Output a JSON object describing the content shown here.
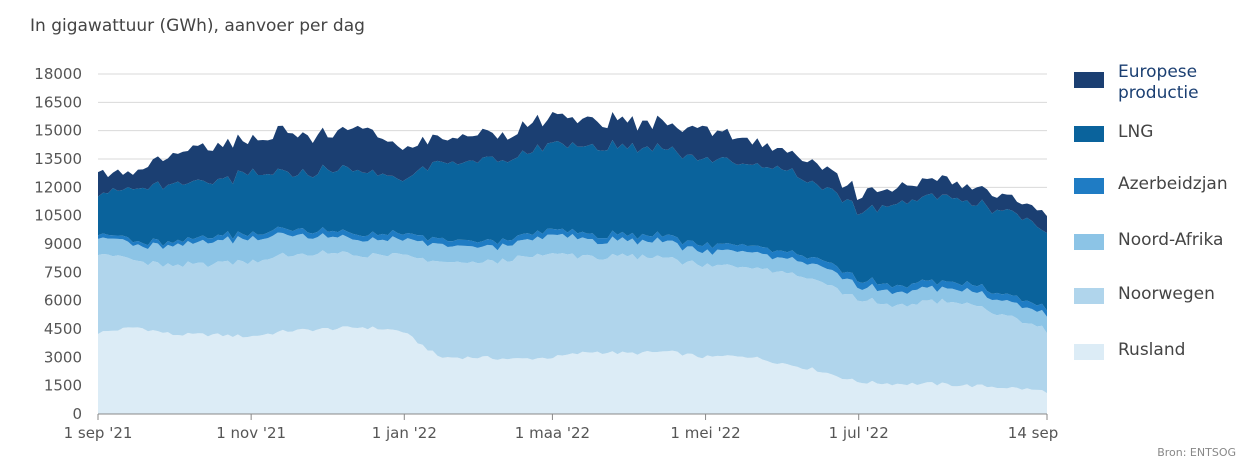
{
  "chart_data": {
    "type": "area",
    "stacked": true,
    "title": "In gigawattuur (GWh), aanvoer per dag",
    "source": "Bron: ENTSOG",
    "ylim": [
      0,
      18000
    ],
    "yticks": [
      "0",
      "1500",
      "3000",
      "4500",
      "6000",
      "7500",
      "9000",
      "10500",
      "12000",
      "13500",
      "15000",
      "16500",
      "18000"
    ],
    "xticks": [
      "1 sep '21",
      "1 nov '21",
      "1 jan '22",
      "1 maa '22",
      "1 mei '22",
      "1 jul '22",
      "14 sep '22"
    ],
    "x": [
      "2021-09-01",
      "2021-09-15",
      "2021-10-01",
      "2021-10-15",
      "2021-11-01",
      "2021-11-15",
      "2021-12-01",
      "2021-12-15",
      "2022-01-01",
      "2022-01-15",
      "2022-02-01",
      "2022-02-15",
      "2022-03-01",
      "2022-03-15",
      "2022-04-01",
      "2022-04-15",
      "2022-05-01",
      "2022-05-15",
      "2022-06-01",
      "2022-06-15",
      "2022-07-01",
      "2022-07-15",
      "2022-08-01",
      "2022-08-15",
      "2022-09-01",
      "2022-09-14"
    ],
    "series": [
      {
        "name": "Rusland",
        "color": "#dcecf6",
        "values": [
          4300,
          4600,
          4200,
          4200,
          4100,
          4400,
          4500,
          4600,
          4400,
          3000,
          3000,
          2900,
          3000,
          3300,
          3200,
          3300,
          3000,
          3100,
          2700,
          2300,
          1700,
          1600,
          1600,
          1500,
          1400,
          1200
        ]
      },
      {
        "name": "Noorwegen",
        "color": "#b0d5ec",
        "values": [
          4300,
          3500,
          3600,
          3800,
          4000,
          4000,
          4000,
          3800,
          4000,
          5000,
          5000,
          5300,
          5500,
          5000,
          5100,
          5000,
          4800,
          4800,
          4900,
          4800,
          4400,
          4100,
          4400,
          4300,
          3700,
          3300
        ]
      },
      {
        "name": "Noord-Afrika",
        "color": "#8cc4e6",
        "values": [
          900,
          800,
          1100,
          1200,
          1200,
          1100,
          900,
          800,
          800,
          900,
          800,
          800,
          1000,
          900,
          800,
          900,
          700,
          800,
          700,
          800,
          700,
          700,
          700,
          700,
          800,
          800
        ]
      },
      {
        "name": "Azerbeidzjan",
        "color": "#1f7cc4",
        "values": [
          200,
          200,
          200,
          250,
          250,
          300,
          300,
          300,
          300,
          300,
          300,
          300,
          300,
          300,
          300,
          300,
          350,
          350,
          350,
          350,
          350,
          350,
          350,
          350,
          350,
          350
        ]
      },
      {
        "name": "LNG",
        "color": "#0a639c",
        "values": [
          2200,
          2700,
          3100,
          2800,
          3200,
          2900,
          3200,
          3400,
          2900,
          4000,
          4300,
          4200,
          4600,
          4600,
          4700,
          4600,
          4600,
          4300,
          4400,
          3900,
          3600,
          4300,
          4600,
          4300,
          4500,
          4000
        ]
      },
      {
        "name": "Europese productie",
        "color": "#1b3f72",
        "values": [
          1100,
          900,
          1500,
          1900,
          1700,
          2200,
          1800,
          2300,
          1600,
          1300,
          1400,
          1400,
          1400,
          1400,
          1300,
          1400,
          1600,
          1300,
          1100,
          1000,
          900,
          900,
          900,
          800,
          800,
          900
        ]
      }
    ]
  }
}
